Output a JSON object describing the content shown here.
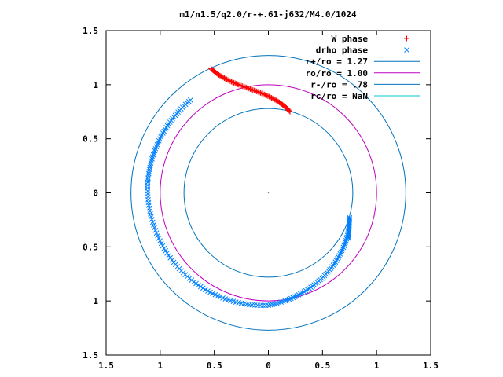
{
  "chart_data": {
    "type": "scatter",
    "title": "m1/n1.5/q2.0/r-+.61-j632/M4.0/1024",
    "xlabel": "",
    "ylabel": "",
    "xlim": [
      -1.5,
      1.5
    ],
    "ylim": [
      -1.5,
      1.5
    ],
    "x_tick_labels": [
      "1.5",
      "1",
      "0.5",
      "0",
      "0.5",
      "1",
      "1.5"
    ],
    "y_tick_labels": [
      "1.5",
      "1",
      "0.5",
      "0",
      "0.5",
      "1",
      "1.5"
    ],
    "grid": false,
    "legend_position": "top-right",
    "center_marker": [
      0,
      0
    ],
    "series": [
      {
        "name": "W phase",
        "kind": "points",
        "marker": "+",
        "color": "#ff0000",
        "curve": {
          "kind": "bezier",
          "p0": [
            -0.53,
            1.15
          ],
          "c1": [
            -0.34,
            0.96
          ],
          "c2": [
            0.02,
            0.96
          ],
          "p1": [
            0.2,
            0.75
          ]
        },
        "count": 70
      },
      {
        "name": "drho phase",
        "kind": "points",
        "marker": "x",
        "color": "#0080ff",
        "segments": [
          {
            "type": "arc",
            "center": [
              0,
              0
            ],
            "r_start": 1.12,
            "r_end": 1.12,
            "angle_start_deg": 130,
            "angle_end_deg": 175,
            "count": 45
          },
          {
            "type": "arc",
            "center": [
              0,
              0
            ],
            "r_start": 1.12,
            "r_end": 1.04,
            "angle_start_deg": 175,
            "angle_end_deg": 270,
            "count": 70
          },
          {
            "type": "arc",
            "center": [
              0,
              0
            ],
            "r_start": 1.04,
            "r_end": 0.82,
            "angle_start_deg": 270,
            "angle_end_deg": 335,
            "count": 60
          },
          {
            "type": "line",
            "from": [
              0.74,
              -0.42
            ],
            "to": [
              0.75,
              -0.23
            ],
            "count": 20
          }
        ]
      },
      {
        "name": "r+/ro = 1.27",
        "kind": "circle",
        "radius": 1.27,
        "color": "#0072bd"
      },
      {
        "name": "ro/ro = 1.00",
        "kind": "circle",
        "radius": 1.0,
        "color": "#c000c0"
      },
      {
        "name": "r-/ro = .78",
        "kind": "circle",
        "radius": 0.78,
        "color": "#0072bd"
      },
      {
        "name": "rc/ro = NaN",
        "kind": "circle",
        "radius": null,
        "color": "#00c8c8"
      }
    ]
  }
}
